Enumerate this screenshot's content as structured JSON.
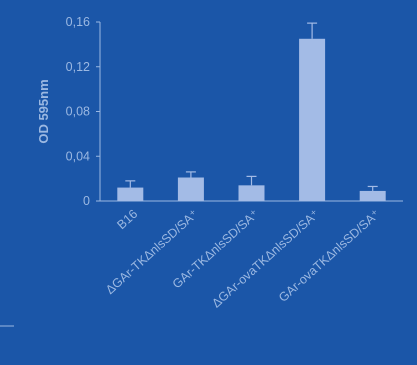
{
  "chart_data": {
    "type": "bar",
    "title": "",
    "xlabel": "",
    "ylabel": "OD 595nm",
    "ylim": [
      0,
      0.16
    ],
    "yticks": [
      "0",
      "0,04",
      "0,08",
      "0,12",
      "0,16"
    ],
    "categories": [
      "B16",
      "ΔGAr-TKΔnlsSD/SA⁺",
      "GAr-TKΔnlsSD/SA⁺",
      "ΔGAr-ovaTKΔnlsSD/SA⁺",
      "GAr-ovaTKΔnlsSD/SA⁺"
    ],
    "values": [
      0.012,
      0.021,
      0.014,
      0.145,
      0.009
    ],
    "errors": [
      0.006,
      0.005,
      0.008,
      0.014,
      0.004
    ],
    "grid": false,
    "colors": {
      "background": "#1b56a8",
      "bar": "#a3bbe6",
      "axis": "#9bb8e2",
      "text": "#9bb8e2"
    }
  }
}
